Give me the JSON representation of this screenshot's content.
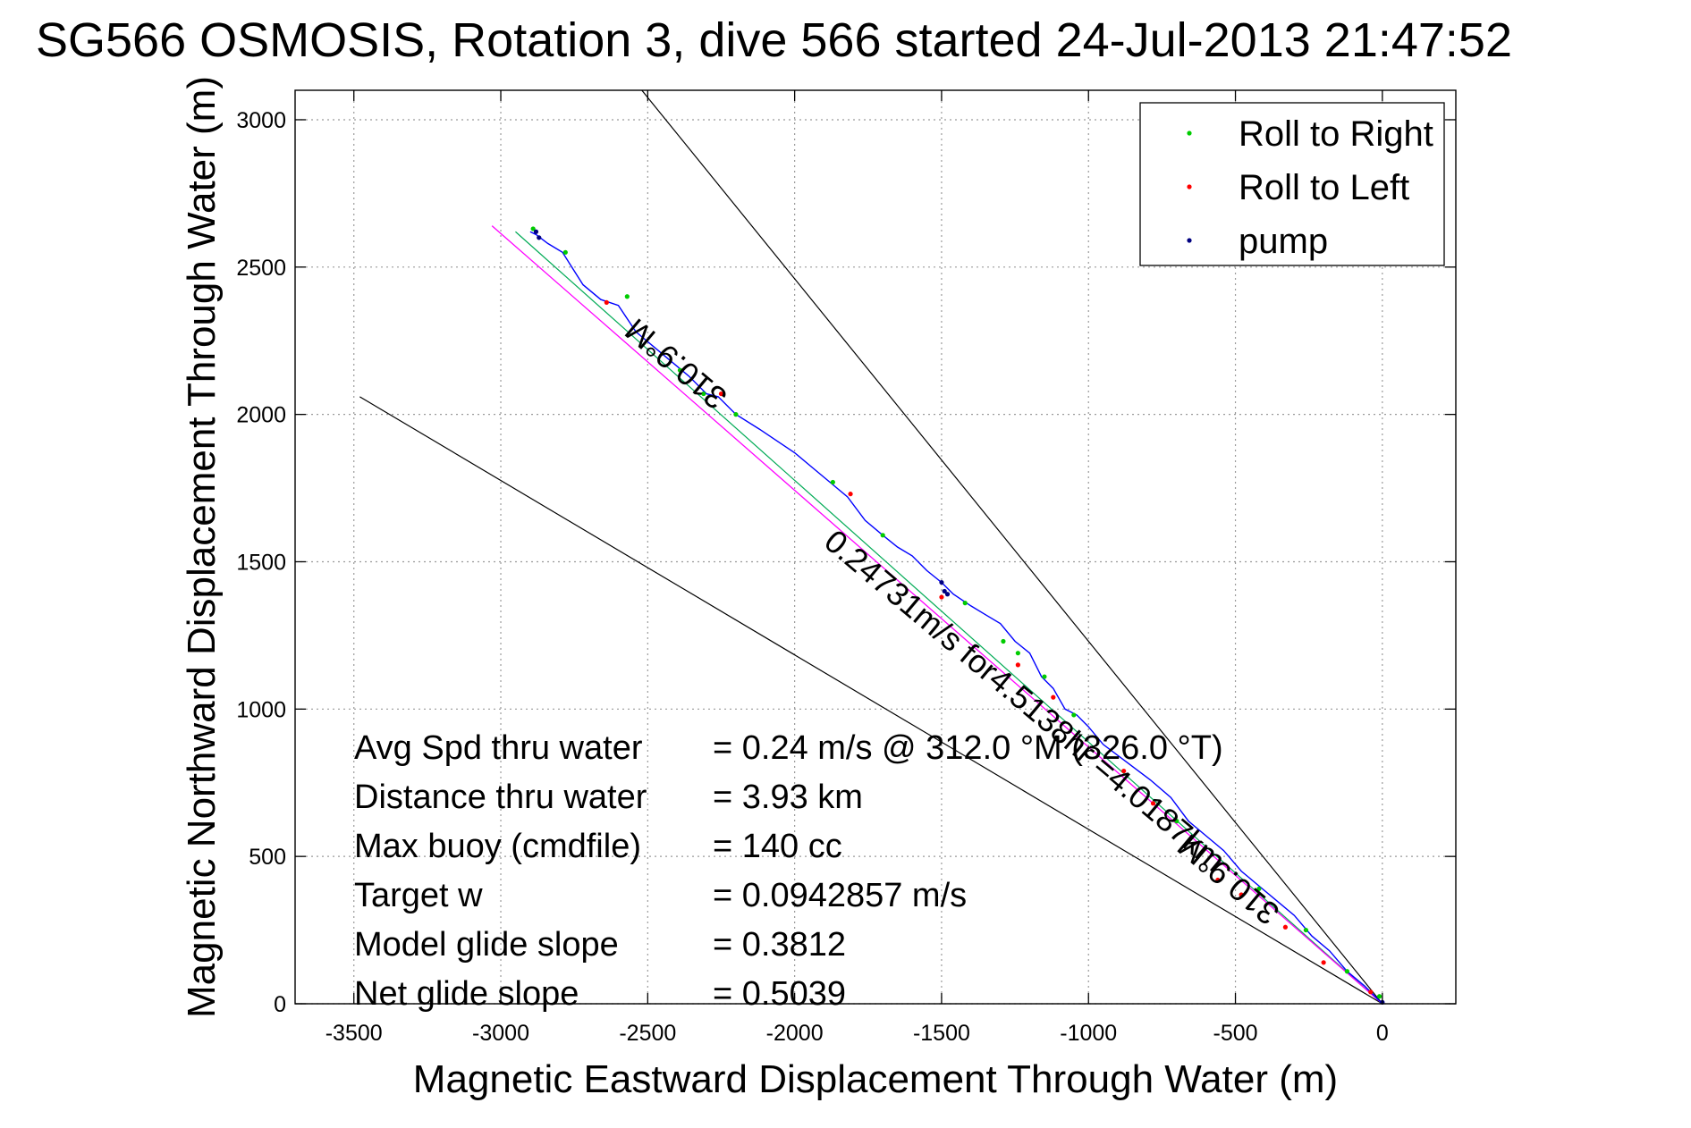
{
  "chart_data": {
    "type": "scatter",
    "title": "SG566 OSMOSIS, Rotation 3, dive 566 started 24-Jul-2013 21:47:52",
    "xlabel": "Magnetic Eastward Displacement Through Water (m)",
    "ylabel": "Magnetic Northward Displacement Through Water (m)",
    "xlim": [
      -3700,
      250
    ],
    "ylim": [
      0,
      3100
    ],
    "xticks": [
      -3500,
      -3000,
      -2500,
      -2000,
      -1500,
      -1000,
      -500,
      0
    ],
    "yticks": [
      0,
      500,
      1000,
      1500,
      2000,
      2500,
      3000
    ],
    "grid": true,
    "legend_position": "top-right",
    "legend": [
      {
        "label": "Roll to Right",
        "color": "#00cc00"
      },
      {
        "label": "Roll to Left",
        "color": "#ff0000"
      },
      {
        "label": "pump",
        "color": "#000080"
      }
    ],
    "track": {
      "color": "#0000ff",
      "x": [
        0,
        -60,
        -120,
        -180,
        -240,
        -300,
        -360,
        -420,
        -480,
        -540,
        -600,
        -660,
        -720,
        -790,
        -870,
        -950,
        -1000,
        -1040,
        -1080,
        -1120,
        -1160,
        -1200,
        -1250,
        -1300,
        -1350,
        -1400,
        -1460,
        -1500,
        -1550,
        -1600,
        -1650,
        -1700,
        -1760,
        -1820,
        -1880,
        -1940,
        -2000,
        -2060,
        -2120,
        -2200,
        -2260,
        -2300,
        -2360,
        -2420,
        -2480,
        -2540,
        -2600,
        -2660,
        -2720,
        -2790,
        -2840,
        -2880,
        -2900
      ],
      "y": [
        0,
        60,
        110,
        180,
        230,
        300,
        350,
        400,
        450,
        520,
        570,
        620,
        700,
        760,
        820,
        880,
        940,
        980,
        1000,
        1070,
        1110,
        1190,
        1230,
        1290,
        1320,
        1350,
        1390,
        1430,
        1470,
        1520,
        1550,
        1590,
        1640,
        1720,
        1770,
        1820,
        1870,
        1910,
        1950,
        2000,
        2060,
        2070,
        2130,
        2180,
        2230,
        2280,
        2370,
        2390,
        2440,
        2550,
        2580,
        2610,
        2620
      ]
    },
    "roll_right": {
      "x": [
        -10,
        -120,
        -260,
        -420,
        -700,
        -1050,
        -1150,
        -1240,
        -1290,
        -1420,
        -1700,
        -1870,
        -2200,
        -2310,
        -2390,
        -2570,
        -2780,
        -2890
      ],
      "y": [
        25,
        110,
        250,
        390,
        620,
        980,
        1110,
        1190,
        1230,
        1360,
        1590,
        1770,
        2000,
        2070,
        2150,
        2400,
        2550,
        2630
      ]
    },
    "roll_left": {
      "x": [
        -40,
        -200,
        -330,
        -480,
        -560,
        -780,
        -880,
        -1120,
        -1240,
        -1500,
        -1810,
        -2250,
        -2640
      ],
      "y": [
        40,
        140,
        260,
        370,
        420,
        680,
        790,
        1040,
        1150,
        1380,
        1730,
        2070,
        2380
      ]
    },
    "pump": {
      "x": [
        -2880,
        -2870,
        -1500,
        -1490,
        -1480,
        0
      ],
      "y": [
        2620,
        2600,
        1430,
        1400,
        1390,
        5
      ]
    },
    "net_line": {
      "color": "#ff00ff",
      "x": [
        0,
        -3030
      ],
      "y": [
        0,
        2640
      ]
    },
    "avg_line": {
      "color": "#00aa55",
      "x": [
        0,
        -2950
      ],
      "y": [
        0,
        2620
      ]
    },
    "cone_lines": [
      {
        "x": [
          0,
          -2520
        ],
        "y": [
          0,
          3100
        ]
      },
      {
        "x": [
          0,
          -3480
        ],
        "y": [
          0,
          2060
        ]
      }
    ],
    "annotations": [
      {
        "text": "310.9°M",
        "x": -2380,
        "y": 2200,
        "angle": 220
      },
      {
        "text": "0.24731m/s for4.5138hr =4.0187km",
        "x": -1240,
        "y": 1000,
        "angle": 40
      },
      {
        "text": "310.9°M",
        "x": -500,
        "y": 450,
        "angle": 220
      }
    ],
    "stats": [
      {
        "label": "Avg Spd thru water",
        "value": "=  0.24 m/s @ 312.0 °M (326.0 °T)"
      },
      {
        "label": "Distance thru water",
        "value": "=  3.93 km"
      },
      {
        "label": "Max buoy (cmdfile)",
        "value": "= 140 cc"
      },
      {
        "label": "Target w",
        "value": "= 0.0942857 m/s"
      },
      {
        "label": "Model glide slope",
        "value": "= 0.3812"
      },
      {
        "label": "Net glide slope",
        "value": "= 0.5039"
      }
    ]
  }
}
